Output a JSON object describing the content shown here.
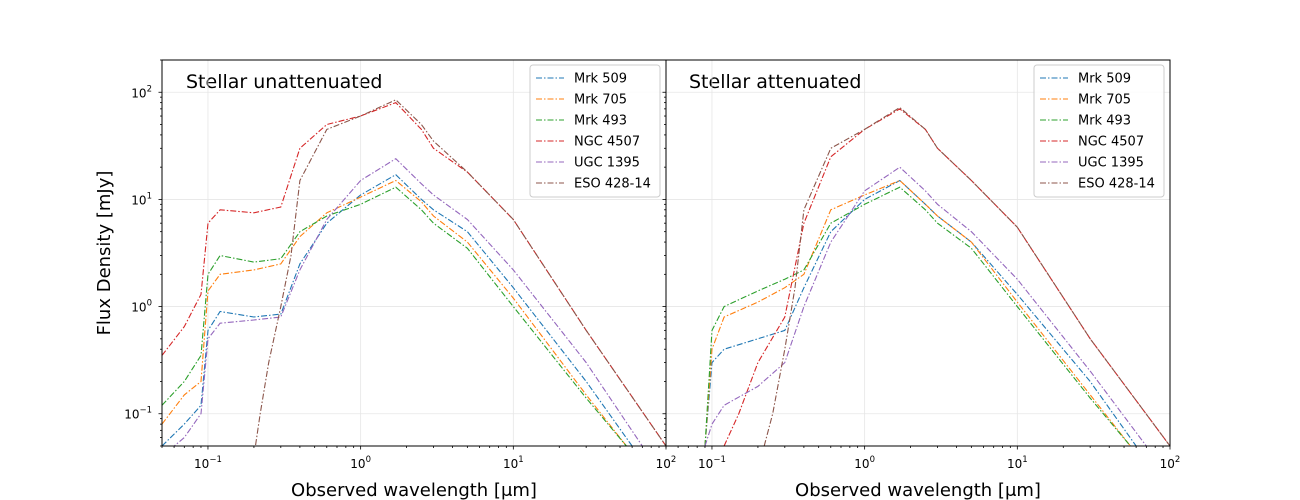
{
  "figure": {
    "ylabel": "Flux Density [mJy]",
    "xlabel": "Observed wavelength [μm]"
  },
  "series_styles": [
    {
      "name": "Mrk  509",
      "color": "#1f77b4"
    },
    {
      "name": "Mrk  705",
      "color": "#ff7f0e"
    },
    {
      "name": "Mrk  493",
      "color": "#2ca02c"
    },
    {
      "name": "NGC  4507",
      "color": "#d62728"
    },
    {
      "name": "UGC  1395",
      "color": "#9467bd"
    },
    {
      "name": "ESO 428-14",
      "color": "#8c564b"
    }
  ],
  "chart_data": [
    {
      "type": "line",
      "title": "Stellar unattenuated",
      "xscale": "log",
      "yscale": "log",
      "xlim": [
        0.05,
        100
      ],
      "ylim": [
        0.05,
        200
      ],
      "grid": true,
      "legend": "top-right",
      "xlabel": "Observed wavelength [μm]",
      "ylabel": "Flux Density [mJy]",
      "x_ticks": [
        "10^-1",
        "10^0",
        "10^1",
        "10^2"
      ],
      "y_ticks": [
        "10^-1",
        "10^0",
        "10^1",
        "10^2"
      ],
      "series": [
        {
          "name": "Mrk  509",
          "points": [
            [
              0.05,
              0.05
            ],
            [
              0.07,
              0.08
            ],
            [
              0.09,
              0.12
            ],
            [
              0.1,
              0.6
            ],
            [
              0.12,
              0.9
            ],
            [
              0.2,
              0.8
            ],
            [
              0.3,
              0.85
            ],
            [
              0.4,
              2.5
            ],
            [
              0.6,
              6
            ],
            [
              1,
              11
            ],
            [
              1.7,
              17
            ],
            [
              2.5,
              10
            ],
            [
              3,
              8
            ],
            [
              5,
              5
            ],
            [
              10,
              1.5
            ],
            [
              30,
              0.2
            ],
            [
              60,
              0.05
            ]
          ]
        },
        {
          "name": "Mrk  705",
          "points": [
            [
              0.05,
              0.08
            ],
            [
              0.07,
              0.15
            ],
            [
              0.09,
              0.2
            ],
            [
              0.1,
              1.4
            ],
            [
              0.12,
              2
            ],
            [
              0.2,
              2.2
            ],
            [
              0.3,
              2.5
            ],
            [
              0.4,
              4.5
            ],
            [
              0.6,
              7.5
            ],
            [
              1,
              10.5
            ],
            [
              1.7,
              15
            ],
            [
              2.5,
              9.5
            ],
            [
              3,
              7
            ],
            [
              5,
              4
            ],
            [
              10,
              1.2
            ],
            [
              30,
              0.15
            ],
            [
              55,
              0.05
            ]
          ]
        },
        {
          "name": "Mrk  493",
          "points": [
            [
              0.05,
              0.12
            ],
            [
              0.07,
              0.2
            ],
            [
              0.09,
              0.35
            ],
            [
              0.1,
              2
            ],
            [
              0.12,
              3
            ],
            [
              0.2,
              2.6
            ],
            [
              0.3,
              2.8
            ],
            [
              0.4,
              5
            ],
            [
              0.6,
              7
            ],
            [
              1,
              9
            ],
            [
              1.7,
              13
            ],
            [
              2.5,
              8
            ],
            [
              3,
              6
            ],
            [
              5,
              3.5
            ],
            [
              10,
              1
            ],
            [
              30,
              0.14
            ],
            [
              55,
              0.05
            ]
          ]
        },
        {
          "name": "NGC  4507",
          "points": [
            [
              0.05,
              0.35
            ],
            [
              0.07,
              0.65
            ],
            [
              0.09,
              1.3
            ],
            [
              0.1,
              6
            ],
            [
              0.12,
              8
            ],
            [
              0.2,
              7.5
            ],
            [
              0.3,
              8.5
            ],
            [
              0.4,
              30
            ],
            [
              0.6,
              50
            ],
            [
              1,
              60
            ],
            [
              1.7,
              80
            ],
            [
              2.5,
              45
            ],
            [
              3,
              30
            ],
            [
              5,
              18
            ],
            [
              10,
              6.5
            ],
            [
              30,
              0.6
            ],
            [
              100,
              0.05
            ]
          ]
        },
        {
          "name": "UGC  1395",
          "points": [
            [
              0.05,
              0.04
            ],
            [
              0.07,
              0.06
            ],
            [
              0.09,
              0.1
            ],
            [
              0.1,
              0.5
            ],
            [
              0.12,
              0.7
            ],
            [
              0.2,
              0.75
            ],
            [
              0.3,
              0.8
            ],
            [
              0.4,
              2.2
            ],
            [
              0.6,
              6.5
            ],
            [
              1,
              15
            ],
            [
              1.7,
              24
            ],
            [
              2.5,
              14
            ],
            [
              3,
              11
            ],
            [
              5,
              6.5
            ],
            [
              10,
              2.2
            ],
            [
              30,
              0.3
            ],
            [
              70,
              0.05
            ]
          ]
        },
        {
          "name": "ESO 428-14",
          "points": [
            [
              0.2,
              0.04
            ],
            [
              0.22,
              0.1
            ],
            [
              0.25,
              0.3
            ],
            [
              0.3,
              1
            ],
            [
              0.35,
              3
            ],
            [
              0.4,
              15
            ],
            [
              0.6,
              45
            ],
            [
              1,
              60
            ],
            [
              1.7,
              85
            ],
            [
              2.5,
              50
            ],
            [
              3,
              35
            ],
            [
              5,
              18
            ],
            [
              10,
              6.5
            ],
            [
              30,
              0.6
            ],
            [
              100,
              0.05
            ]
          ]
        }
      ]
    },
    {
      "type": "line",
      "title": "Stellar attenuated",
      "xscale": "log",
      "yscale": "log",
      "xlim": [
        0.05,
        100
      ],
      "ylim": [
        0.05,
        200
      ],
      "grid": true,
      "legend": "top-right",
      "xlabel": "Observed wavelength [μm]",
      "ylabel": "",
      "x_ticks": [
        "10^-1",
        "10^0",
        "10^1",
        "10^2"
      ],
      "y_ticks": [],
      "series": [
        {
          "name": "Mrk  509",
          "points": [
            [
              0.09,
              0.05
            ],
            [
              0.1,
              0.3
            ],
            [
              0.12,
              0.4
            ],
            [
              0.2,
              0.5
            ],
            [
              0.3,
              0.6
            ],
            [
              0.4,
              1.5
            ],
            [
              0.6,
              5
            ],
            [
              1,
              10
            ],
            [
              1.7,
              15
            ],
            [
              2.5,
              9
            ],
            [
              3,
              7
            ],
            [
              5,
              4
            ],
            [
              10,
              1.3
            ],
            [
              30,
              0.2
            ],
            [
              60,
              0.05
            ]
          ]
        },
        {
          "name": "Mrk  705",
          "points": [
            [
              0.09,
              0.05
            ],
            [
              0.1,
              0.4
            ],
            [
              0.12,
              0.8
            ],
            [
              0.2,
              1.1
            ],
            [
              0.3,
              1.5
            ],
            [
              0.4,
              2
            ],
            [
              0.6,
              8
            ],
            [
              1,
              11
            ],
            [
              1.7,
              15
            ],
            [
              2.5,
              9
            ],
            [
              3,
              7
            ],
            [
              5,
              4
            ],
            [
              10,
              1.1
            ],
            [
              30,
              0.15
            ],
            [
              55,
              0.05
            ]
          ]
        },
        {
          "name": "Mrk  493",
          "points": [
            [
              0.09,
              0.05
            ],
            [
              0.1,
              0.6
            ],
            [
              0.12,
              1
            ],
            [
              0.2,
              1.4
            ],
            [
              0.3,
              1.8
            ],
            [
              0.4,
              2.2
            ],
            [
              0.6,
              6
            ],
            [
              1,
              9
            ],
            [
              1.7,
              13
            ],
            [
              2.5,
              8
            ],
            [
              3,
              6
            ],
            [
              5,
              3.5
            ],
            [
              10,
              1
            ],
            [
              30,
              0.14
            ],
            [
              55,
              0.05
            ]
          ]
        },
        {
          "name": "NGC  4507",
          "points": [
            [
              0.12,
              0.05
            ],
            [
              0.15,
              0.1
            ],
            [
              0.2,
              0.3
            ],
            [
              0.3,
              0.8
            ],
            [
              0.4,
              6
            ],
            [
              0.6,
              25
            ],
            [
              1,
              45
            ],
            [
              1.7,
              70
            ],
            [
              2.5,
              45
            ],
            [
              3,
              30
            ],
            [
              5,
              15
            ],
            [
              10,
              5.5
            ],
            [
              30,
              0.5
            ],
            [
              100,
              0.05
            ]
          ]
        },
        {
          "name": "UGC  1395",
          "points": [
            [
              0.09,
              0.05
            ],
            [
              0.1,
              0.08
            ],
            [
              0.12,
              0.12
            ],
            [
              0.2,
              0.18
            ],
            [
              0.3,
              0.3
            ],
            [
              0.4,
              1
            ],
            [
              0.6,
              4
            ],
            [
              1,
              12
            ],
            [
              1.7,
              20
            ],
            [
              2.5,
              12
            ],
            [
              3,
              9
            ],
            [
              5,
              5
            ],
            [
              10,
              1.8
            ],
            [
              30,
              0.25
            ],
            [
              70,
              0.05
            ]
          ]
        },
        {
          "name": "ESO 428-14",
          "points": [
            [
              0.22,
              0.05
            ],
            [
              0.25,
              0.1
            ],
            [
              0.3,
              0.4
            ],
            [
              0.35,
              1.5
            ],
            [
              0.4,
              8
            ],
            [
              0.6,
              30
            ],
            [
              1,
              45
            ],
            [
              1.7,
              72
            ],
            [
              2.5,
              45
            ],
            [
              3,
              30
            ],
            [
              5,
              15
            ],
            [
              10,
              5.5
            ],
            [
              30,
              0.5
            ],
            [
              100,
              0.05
            ]
          ]
        }
      ]
    }
  ]
}
